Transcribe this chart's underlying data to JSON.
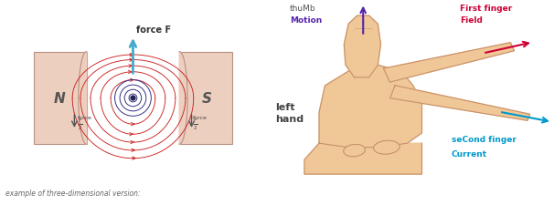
{
  "bg_color": "#ffffff",
  "magnet_color": "#edcfc0",
  "magnet_edge": "#b89080",
  "field_line_color": "#cc2222",
  "force_arrow_color": "#44aacc",
  "current_dot_color": "#222266",
  "N_label": "N",
  "S_label": "S",
  "force_label": "force F",
  "example_text": "example of three-dimensional version:",
  "thumb_label_1": "thuMb",
  "thumb_label_2": "Motion",
  "first_finger_label_1": "First finger",
  "first_finger_label_2": "Field",
  "second_finger_label_1": "seCond finger",
  "second_finger_label_2": "Current",
  "left_hand_label": "left\nhand",
  "thumb_arrow_color": "#5522aa",
  "first_finger_color": "#cc0033",
  "second_finger_color": "#0099cc",
  "hand_fill": "#f0c898",
  "hand_edge": "#c8906a",
  "hand_line": "#d4a070"
}
